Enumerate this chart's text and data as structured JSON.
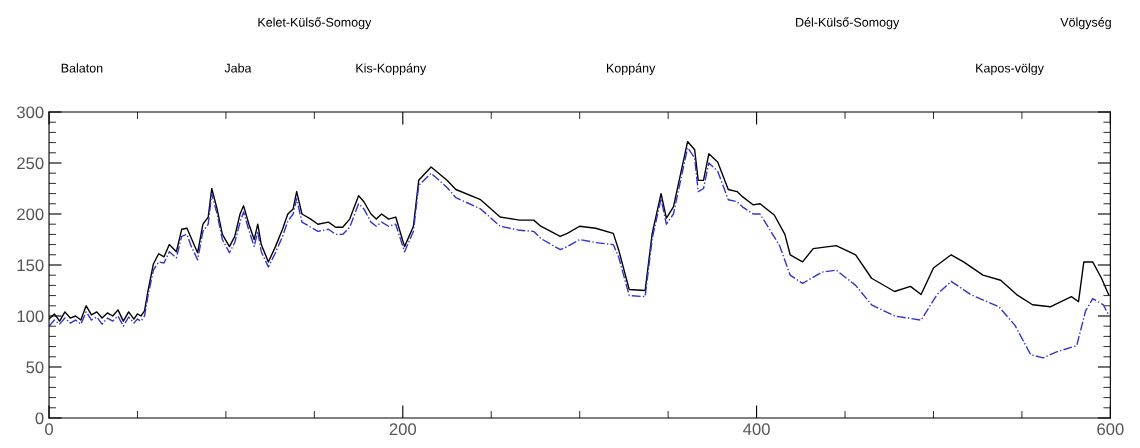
{
  "chart_data": {
    "type": "line",
    "xlim": [
      0,
      600
    ],
    "xticks": [
      0,
      200,
      400,
      600
    ],
    "ylim": [
      0,
      300
    ],
    "yticks": [
      0,
      50,
      100,
      150,
      200,
      250,
      300
    ],
    "grid": false,
    "annotations": [
      "Kelet-Külső-Somogy",
      "Dél-Külső-Somogy",
      "Völgység",
      "Balaton",
      "Jaba",
      "Kis-Koppány",
      "Koppány",
      "Kapos-völgy"
    ],
    "series": [
      {
        "color": "#000000",
        "line_style": "solid",
        "x": [
          0,
          3,
          6,
          9,
          12,
          15,
          18,
          21,
          24,
          27,
          30,
          33,
          36,
          39,
          42,
          45,
          48,
          50,
          52,
          54,
          56,
          59,
          62,
          65,
          68,
          72,
          75,
          78,
          80,
          84,
          87,
          90,
          92,
          95,
          98,
          102,
          105,
          108,
          110,
          113,
          116,
          118,
          120,
          124,
          128,
          132,
          135,
          138,
          140,
          143,
          148,
          152,
          158,
          162,
          166,
          170,
          175,
          178,
          182,
          185,
          188,
          192,
          196,
          201,
          206,
          209,
          216,
          225,
          230,
          244,
          255,
          266,
          274,
          278,
          289,
          293,
          300,
          309,
          319,
          322,
          328,
          337,
          341,
          346,
          349,
          353,
          361,
          365,
          367,
          370,
          373,
          378,
          384,
          389,
          392,
          398,
          402,
          410,
          416,
          419,
          426,
          432,
          445,
          456,
          465,
          478,
          487,
          493,
          500,
          510,
          517,
          528,
          538,
          547,
          556,
          566,
          578,
          582,
          585,
          590,
          595,
          599
        ],
        "values": [
          97,
          102,
          95,
          104,
          98,
          100,
          96,
          110,
          101,
          104,
          98,
          103,
          100,
          106,
          95,
          104,
          97,
          102,
          100,
          105,
          125,
          151,
          161,
          158,
          170,
          163,
          185,
          186,
          178,
          162,
          190,
          197,
          225,
          205,
          180,
          168,
          178,
          200,
          208,
          190,
          175,
          190,
          170,
          153,
          168,
          185,
          200,
          205,
          222,
          200,
          195,
          190,
          192,
          187,
          187,
          195,
          218,
          212,
          200,
          195,
          200,
          195,
          197,
          168,
          188,
          233,
          246,
          233,
          224,
          214,
          197,
          194,
          194,
          188,
          178,
          181,
          188,
          186,
          181,
          165,
          126,
          125,
          181,
          220,
          196,
          207,
          271,
          263,
          233,
          233,
          259,
          251,
          224,
          222,
          217,
          209,
          210,
          199,
          180,
          160,
          153,
          166,
          169,
          160,
          137,
          124,
          129,
          121,
          147,
          160,
          153,
          140,
          135,
          121,
          111,
          109,
          119,
          114,
          153,
          153,
          137,
          121
        ]
      },
      {
        "color": "#3333cc",
        "line_style": "dashdot",
        "x": [
          0,
          3,
          6,
          9,
          12,
          15,
          18,
          21,
          24,
          27,
          30,
          33,
          36,
          39,
          42,
          45,
          48,
          50,
          52,
          54,
          56,
          59,
          62,
          65,
          68,
          72,
          75,
          78,
          80,
          84,
          87,
          90,
          92,
          95,
          98,
          102,
          105,
          108,
          110,
          113,
          116,
          118,
          120,
          124,
          128,
          132,
          135,
          138,
          140,
          143,
          148,
          152,
          158,
          162,
          166,
          170,
          175,
          178,
          182,
          185,
          188,
          192,
          196,
          201,
          206,
          209,
          216,
          225,
          230,
          244,
          255,
          266,
          274,
          278,
          289,
          293,
          300,
          309,
          319,
          322,
          328,
          337,
          341,
          346,
          349,
          353,
          361,
          365,
          367,
          370,
          373,
          378,
          384,
          389,
          392,
          398,
          402,
          413,
          419,
          426,
          437,
          445,
          456,
          465,
          478,
          493,
          502,
          510,
          521,
          537,
          546,
          555,
          562,
          570,
          581,
          586,
          590,
          596,
          599
        ],
        "values": [
          90,
          96,
          92,
          98,
          93,
          96,
          92,
          104,
          96,
          99,
          92,
          98,
          95,
          100,
          90,
          99,
          93,
          97,
          95,
          100,
          120,
          145,
          153,
          152,
          163,
          157,
          178,
          180,
          170,
          155,
          183,
          190,
          220,
          200,
          175,
          162,
          172,
          192,
          202,
          184,
          168,
          183,
          163,
          148,
          162,
          178,
          193,
          200,
          215,
          192,
          187,
          183,
          185,
          180,
          180,
          187,
          210,
          205,
          192,
          188,
          192,
          188,
          190,
          163,
          183,
          228,
          240,
          226,
          216,
          205,
          188,
          184,
          183,
          176,
          165,
          168,
          175,
          172,
          170,
          158,
          120,
          119,
          176,
          215,
          190,
          200,
          265,
          255,
          222,
          225,
          250,
          242,
          214,
          212,
          207,
          200,
          200,
          169,
          140,
          132,
          143,
          145,
          130,
          111,
          100,
          96,
          121,
          134,
          121,
          109,
          91,
          62,
          59,
          65,
          71,
          105,
          117,
          111,
          101
        ]
      }
    ]
  }
}
